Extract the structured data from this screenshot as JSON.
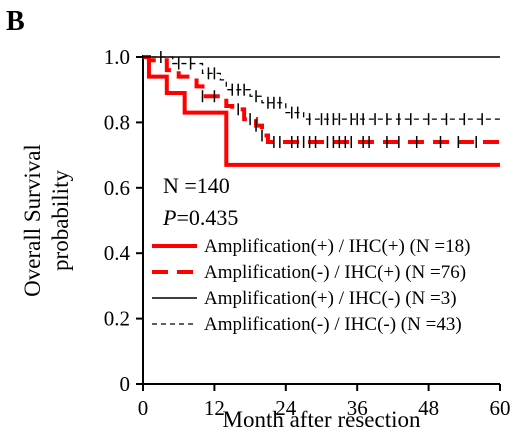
{
  "chart_data": {
    "type": "line",
    "panel_label": "B",
    "title": "",
    "xlabel": "Month after resection",
    "ylabel_lines": [
      "Overall Survival",
      "probability"
    ],
    "xlim": [
      0,
      60
    ],
    "ylim": [
      0,
      1.0
    ],
    "x_ticks": [
      0,
      12,
      24,
      36,
      48,
      60
    ],
    "y_ticks": [
      0,
      0.2,
      0.4,
      0.6,
      0.8,
      1.0
    ],
    "x_tick_labels": [
      "0",
      "12",
      "24",
      "36",
      "48",
      "60"
    ],
    "y_tick_labels": [
      "0",
      "0.2",
      "0.4",
      "0.6",
      "0.8",
      "1.0"
    ],
    "grid": false,
    "legend_position": "lower-left",
    "annotations": {
      "n_total": "N =140",
      "p_prefix": "P",
      "p_value": "=0.435"
    },
    "series": [
      {
        "name": "Amplification(+) / IHC(+) (N =18)",
        "color": "#ff0000",
        "style": "solid-thick",
        "x": [
          0,
          1,
          4,
          7,
          14,
          60
        ],
        "y": [
          1.0,
          0.94,
          0.89,
          0.83,
          0.67,
          0.67
        ],
        "censor_x": []
      },
      {
        "name": "Amplification(-) / IHC(+) (N =76)",
        "color": "#ff0000",
        "style": "dashed-thick",
        "x": [
          0,
          1,
          4,
          6,
          9,
          10,
          14,
          15,
          17,
          19,
          20,
          21,
          60
        ],
        "y": [
          1.0,
          0.99,
          0.96,
          0.94,
          0.91,
          0.88,
          0.85,
          0.84,
          0.81,
          0.79,
          0.76,
          0.74,
          0.74
        ],
        "censor_x": [
          10,
          12,
          16,
          18,
          19,
          20,
          22,
          23,
          25,
          26,
          27,
          28,
          29,
          31,
          32,
          33,
          34,
          35,
          37,
          38,
          41,
          43,
          46,
          50,
          53,
          56
        ]
      },
      {
        "name": "Amplification(+) / IHC(-) (N =3)",
        "color": "#000000",
        "style": "solid-thin",
        "x": [
          0,
          60
        ],
        "y": [
          1.0,
          1.0
        ],
        "censor_x": []
      },
      {
        "name": "Amplification(-) / IHC(-) (N =43)",
        "color": "#000000",
        "style": "dashed-thin",
        "x": [
          0,
          5,
          10,
          13,
          14,
          18,
          20,
          24,
          27,
          60
        ],
        "y": [
          1.0,
          0.98,
          0.95,
          0.93,
          0.9,
          0.88,
          0.86,
          0.83,
          0.81,
          0.81
        ],
        "censor_x": [
          3,
          6,
          8,
          11,
          12,
          15,
          16,
          17,
          19,
          21,
          22,
          23,
          25,
          26,
          28,
          30,
          31,
          32,
          33,
          35,
          36,
          37,
          39,
          41,
          43,
          45,
          48,
          51,
          54,
          57
        ]
      }
    ]
  }
}
